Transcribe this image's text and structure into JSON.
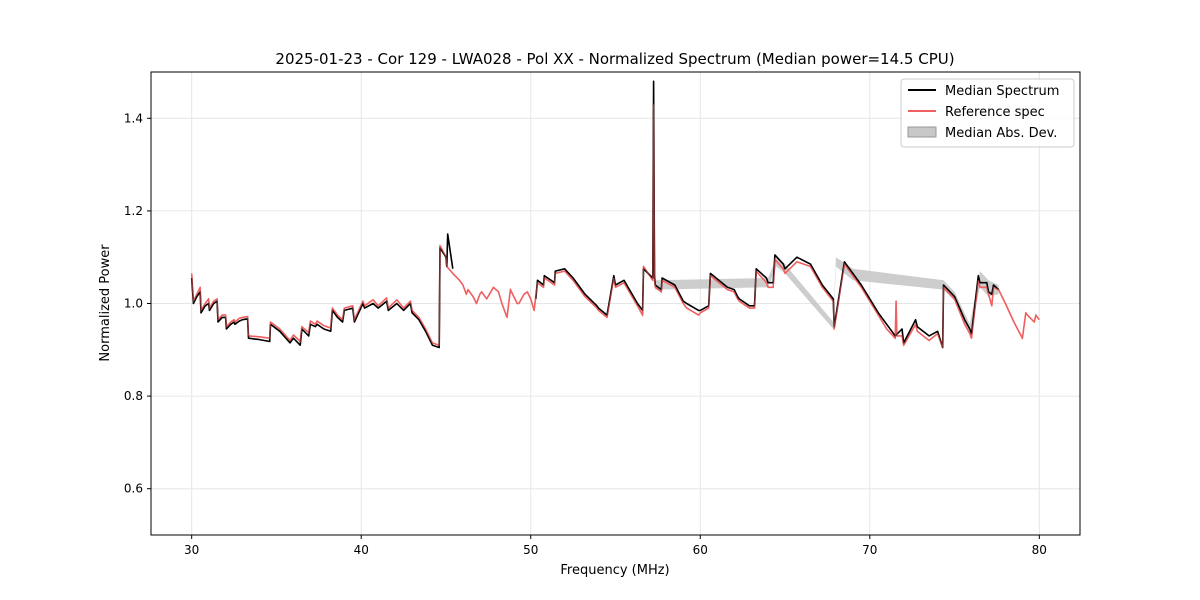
{
  "chart_data": {
    "type": "line",
    "title": "2025-01-23 - Cor 129 - LWA028 - Pol XX - Normalized Spectrum (Median power=14.5 CPU)",
    "xlabel": "Frequency (MHz)",
    "ylabel": "Normalized Power",
    "xlim": [
      27.6,
      82.4
    ],
    "ylim": [
      0.5,
      1.5
    ],
    "xticks": [
      30,
      40,
      50,
      60,
      70,
      80
    ],
    "yticks": [
      0.6,
      0.8,
      1.0,
      1.2,
      1.4
    ],
    "xtick_labels": [
      "30",
      "40",
      "50",
      "60",
      "70",
      "80"
    ],
    "ytick_labels": [
      "0.6",
      "0.8",
      "1.0",
      "1.2",
      "1.4"
    ],
    "grid": true,
    "legend_position": "top-right",
    "colors": {
      "median": "#000000",
      "reference": "#f06060",
      "mad_fill": "#c8c8c8"
    },
    "series": [
      {
        "name": "Median Spectrum",
        "style": "line",
        "x": [
          30.0,
          30.1,
          30.3,
          30.5,
          30.55,
          30.8,
          31.0,
          31.05,
          31.3,
          31.5,
          31.55,
          31.8,
          32.0,
          32.05,
          32.3,
          32.5,
          32.55,
          32.8,
          33.0,
          33.3,
          33.35,
          34.0,
          34.6,
          34.65,
          35.2,
          35.8,
          36.0,
          36.4,
          36.5,
          36.9,
          37.0,
          37.3,
          37.4,
          37.8,
          38.2,
          38.3,
          38.6,
          38.9,
          39.0,
          39.5,
          39.6,
          40.1,
          40.2,
          40.7,
          41.0,
          41.5,
          41.6,
          42.1,
          42.5,
          42.9,
          43.0,
          43.4,
          43.8,
          44.2,
          44.6,
          44.65,
          45.0,
          45.05,
          45.1,
          45.4
        ],
        "y": [
          1.055,
          1.0,
          1.015,
          1.025,
          0.98,
          0.995,
          1.0,
          0.985,
          1.0,
          1.005,
          0.96,
          0.97,
          0.97,
          0.945,
          0.955,
          0.96,
          0.955,
          0.962,
          0.965,
          0.967,
          0.925,
          0.922,
          0.918,
          0.955,
          0.94,
          0.915,
          0.925,
          0.91,
          0.945,
          0.93,
          0.955,
          0.95,
          0.955,
          0.945,
          0.94,
          0.985,
          0.97,
          0.96,
          0.985,
          0.99,
          0.96,
          1.0,
          0.99,
          1.0,
          0.99,
          1.005,
          0.985,
          1.0,
          0.985,
          1.0,
          0.98,
          0.965,
          0.94,
          0.91,
          0.905,
          1.12,
          1.1,
          1.08,
          1.15,
          1.075
        ]
      },
      {
        "name": "Median Spectrum",
        "style": "line",
        "x": [
          50.3,
          50.4,
          50.75,
          50.8,
          51.4,
          51.45,
          52.0,
          52.5,
          53.2,
          53.9,
          54.0,
          54.5,
          54.9,
          55.0,
          55.5,
          56.3,
          56.6,
          56.65,
          57.2,
          57.25,
          57.3,
          57.35,
          57.7,
          57.75,
          58.5,
          59.0,
          59.2,
          59.9,
          60.0,
          60.5,
          60.6,
          61.6,
          62.0,
          62.2,
          62.3,
          62.9,
          63.2,
          63.3,
          63.9,
          64.0,
          64.3,
          64.4,
          64.9,
          65.0,
          65.7,
          66.5,
          67.2,
          67.85,
          67.9,
          68.5,
          69.0,
          69.5,
          70.0,
          70.5,
          71.0,
          71.5,
          71.9,
          72.0,
          72.7,
          72.8,
          73.5,
          74.0,
          74.3,
          74.35,
          75.0,
          75.6,
          75.9,
          76.0,
          76.4,
          76.5,
          76.9,
          77.0,
          77.2,
          77.3,
          77.6
        ],
        "y": [
          1.01,
          1.05,
          1.04,
          1.06,
          1.045,
          1.07,
          1.075,
          1.055,
          1.02,
          0.995,
          0.99,
          0.975,
          1.06,
          1.04,
          1.05,
          1.0,
          0.985,
          1.075,
          1.055,
          1.48,
          1.06,
          1.04,
          1.03,
          1.055,
          1.04,
          1.005,
          1.0,
          0.985,
          0.985,
          0.995,
          1.065,
          1.035,
          1.03,
          1.015,
          1.01,
          0.995,
          0.995,
          1.075,
          1.055,
          1.045,
          1.045,
          1.105,
          1.085,
          1.075,
          1.1,
          1.085,
          1.04,
          1.01,
          0.95,
          1.09,
          1.065,
          1.04,
          1.01,
          0.98,
          0.955,
          0.93,
          0.945,
          0.915,
          0.965,
          0.95,
          0.93,
          0.94,
          0.905,
          1.04,
          1.015,
          0.965,
          0.945,
          0.935,
          1.06,
          1.045,
          1.045,
          1.025,
          1.02,
          1.04,
          1.03
        ]
      },
      {
        "name": "Reference spec",
        "style": "line",
        "x": [
          30.0,
          30.1,
          30.3,
          30.5,
          30.55,
          30.8,
          31.0,
          31.05,
          31.3,
          31.5,
          31.55,
          31.8,
          32.0,
          32.05,
          32.3,
          32.5,
          32.55,
          32.8,
          33.0,
          33.3,
          33.35,
          34.0,
          34.6,
          34.65,
          35.2,
          35.8,
          36.0,
          36.4,
          36.5,
          36.9,
          37.0,
          37.3,
          37.4,
          37.8,
          38.2,
          38.3,
          38.6,
          38.9,
          39.0,
          39.5,
          39.6,
          40.1,
          40.2,
          40.7,
          41.0,
          41.5,
          41.6,
          42.1,
          42.5,
          42.9,
          43.0,
          43.4,
          43.8,
          44.2,
          44.6,
          44.65,
          45.0,
          45.05,
          45.4,
          45.8,
          46.0,
          46.2,
          46.3,
          46.6,
          46.8,
          47.0,
          47.1,
          47.4,
          47.8,
          48.1,
          48.3,
          48.5,
          48.6,
          48.8,
          49.0,
          49.2,
          49.3,
          49.6,
          49.8,
          50.0,
          50.2,
          50.4,
          50.75,
          50.8,
          51.4,
          51.45,
          52.0,
          52.5,
          53.2,
          53.9,
          54.0,
          54.5,
          54.9,
          55.0,
          55.5,
          56.3,
          56.6,
          56.65,
          57.2,
          57.25,
          57.3,
          57.35,
          57.7,
          57.75,
          58.5,
          59.0,
          59.2,
          59.9,
          60.0,
          60.5,
          60.6,
          61.6,
          62.0,
          62.2,
          62.3,
          62.9,
          63.2,
          63.3,
          63.9,
          64.0,
          64.3,
          64.4,
          64.9,
          65.0,
          65.7,
          66.5,
          67.2,
          67.85,
          67.9,
          68.5,
          69.0,
          69.5,
          70.0,
          70.5,
          71.0,
          71.5,
          71.55,
          71.6,
          71.9,
          72.0,
          72.7,
          72.8,
          73.5,
          74.0,
          74.3,
          74.35,
          75.0,
          75.6,
          75.9,
          76.0,
          76.4,
          76.5,
          76.9,
          77.0,
          77.2,
          77.3,
          77.6,
          78.0,
          78.5,
          79.0,
          79.2,
          79.3,
          79.7,
          79.8,
          80.0
        ],
        "y": [
          1.065,
          1.005,
          1.02,
          1.035,
          0.985,
          1.0,
          1.01,
          0.99,
          1.005,
          1.01,
          0.965,
          0.975,
          0.975,
          0.95,
          0.96,
          0.965,
          0.96,
          0.968,
          0.97,
          0.972,
          0.93,
          0.928,
          0.925,
          0.96,
          0.945,
          0.92,
          0.932,
          0.918,
          0.95,
          0.937,
          0.962,
          0.955,
          0.962,
          0.952,
          0.947,
          0.99,
          0.975,
          0.965,
          0.99,
          0.995,
          0.965,
          1.005,
          0.995,
          1.008,
          0.995,
          1.012,
          0.99,
          1.008,
          0.99,
          1.005,
          0.985,
          0.97,
          0.945,
          0.915,
          0.91,
          1.125,
          1.1,
          1.08,
          1.065,
          1.05,
          1.04,
          1.02,
          1.03,
          1.015,
          1.0,
          1.02,
          1.025,
          1.01,
          1.035,
          1.025,
          1.0,
          0.98,
          0.97,
          1.03,
          1.015,
          1.0,
          1.0,
          1.02,
          1.025,
          1.01,
          0.985,
          1.045,
          1.035,
          1.055,
          1.04,
          1.065,
          1.07,
          1.05,
          1.015,
          0.99,
          0.985,
          0.97,
          1.055,
          1.035,
          1.045,
          0.995,
          0.975,
          1.08,
          1.05,
          1.43,
          1.055,
          1.035,
          1.025,
          1.05,
          1.035,
          1.0,
          0.99,
          0.975,
          0.98,
          0.99,
          1.06,
          1.03,
          1.025,
          1.01,
          1.005,
          0.99,
          0.99,
          1.07,
          1.045,
          1.035,
          1.035,
          1.095,
          1.075,
          1.065,
          1.09,
          1.08,
          1.035,
          1.005,
          0.945,
          1.085,
          1.06,
          1.035,
          1.005,
          0.975,
          0.945,
          0.925,
          1.005,
          0.93,
          0.93,
          0.91,
          0.955,
          0.94,
          0.92,
          0.935,
          0.905,
          1.035,
          1.01,
          0.955,
          0.935,
          0.925,
          1.05,
          1.035,
          1.035,
          1.02,
          0.995,
          1.035,
          1.03,
          1.0,
          0.96,
          0.925,
          0.98,
          0.975,
          0.96,
          0.975,
          0.965
        ]
      },
      {
        "name": "Median Abs. Dev.",
        "style": "band",
        "x": [
          57.2,
          57.25,
          57.3,
          57.35,
          64.0,
          64.5,
          65.0,
          67.85,
          68.0,
          69.0,
          74.35,
          75.0,
          75.9,
          76.5,
          77.0,
          77.6
        ],
        "lower": [
          1.045,
          1.43,
          1.05,
          1.03,
          1.035,
          1.08,
          1.065,
          0.945,
          1.08,
          1.05,
          1.03,
          1.005,
          0.935,
          1.035,
          1.015,
          1.02
        ],
        "upper": [
          1.065,
          1.5,
          1.07,
          1.05,
          1.055,
          1.1,
          1.085,
          0.96,
          1.1,
          1.075,
          1.05,
          1.025,
          0.955,
          1.07,
          1.05,
          1.04
        ]
      }
    ]
  }
}
